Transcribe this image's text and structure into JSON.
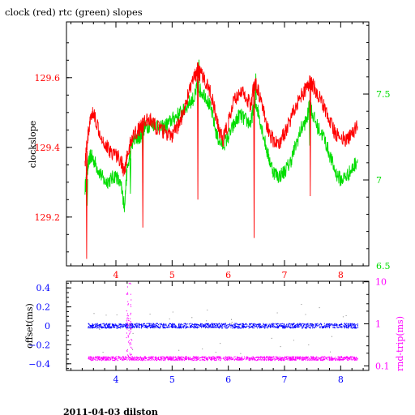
{
  "title": "clock (red) rtc (green) slopes",
  "footer": "2011-04-03 dilston",
  "chart_data": [
    {
      "type": "line",
      "ylabel": "clockslope",
      "xlim": [
        3.12,
        8.5
      ],
      "x_ticks": [
        "4",
        "5",
        "6",
        "7",
        "8"
      ],
      "ylim_left": [
        129.06,
        129.76
      ],
      "y_ticks_left": [
        "129.2",
        "129.4",
        "129.6"
      ],
      "ylim_right": [
        6.5,
        7.92
      ],
      "y_ticks_right": [
        "6.5",
        "7",
        "7.5"
      ],
      "colors": {
        "clock": "#ff0000",
        "rtc": "#00dd00",
        "axes": "#000000"
      },
      "series": [
        {
          "x": [
            3.45,
            3.5,
            3.55,
            3.6,
            3.7,
            3.8,
            3.9,
            4.0,
            4.1,
            4.15,
            4.2,
            4.3,
            4.4,
            4.45,
            4.5,
            4.6,
            4.7,
            4.8,
            4.9,
            5.0,
            5.1,
            5.2,
            5.3,
            5.4,
            5.45,
            5.5,
            5.6,
            5.7,
            5.8,
            5.9,
            6.0,
            6.1,
            6.2,
            6.3,
            6.4,
            6.45,
            6.5,
            6.6,
            6.7,
            6.8,
            6.9,
            7.0,
            7.1,
            7.2,
            7.3,
            7.4,
            7.45,
            7.5,
            7.6,
            7.7,
            7.8,
            7.9,
            8.0,
            8.1,
            8.2,
            8.3
          ],
          "values": [
            129.36,
            129.43,
            129.48,
            129.5,
            129.45,
            129.41,
            129.39,
            129.38,
            129.36,
            129.32,
            129.38,
            129.43,
            129.45,
            129.46,
            129.47,
            129.48,
            129.46,
            129.45,
            129.44,
            129.43,
            129.46,
            129.5,
            129.56,
            129.6,
            129.62,
            129.61,
            129.59,
            129.55,
            129.47,
            129.42,
            129.47,
            129.53,
            129.56,
            129.55,
            129.52,
            129.57,
            129.58,
            129.52,
            129.45,
            129.42,
            129.41,
            129.44,
            129.48,
            129.52,
            129.55,
            129.57,
            129.59,
            129.58,
            129.55,
            129.52,
            129.48,
            129.44,
            129.43,
            129.42,
            129.44,
            129.46
          ]
        },
        {
          "x": [
            3.45,
            3.5,
            3.55,
            3.6,
            3.7,
            3.8,
            3.9,
            4.0,
            4.1,
            4.15,
            4.2,
            4.3,
            4.4,
            4.45,
            4.5,
            4.6,
            4.7,
            4.8,
            4.9,
            5.0,
            5.1,
            5.2,
            5.3,
            5.4,
            5.45,
            5.5,
            5.6,
            5.7,
            5.8,
            5.9,
            6.0,
            6.1,
            6.2,
            6.3,
            6.4,
            6.45,
            6.5,
            6.6,
            6.7,
            6.8,
            6.9,
            7.0,
            7.1,
            7.2,
            7.3,
            7.4,
            7.45,
            7.5,
            7.6,
            7.7,
            7.8,
            7.9,
            8.0,
            8.1,
            8.2,
            8.3
          ],
          "values": [
            6.95,
            7.08,
            7.14,
            7.12,
            7.05,
            6.99,
            7.0,
            7.03,
            6.95,
            6.85,
            7.06,
            7.22,
            7.25,
            7.26,
            7.3,
            7.32,
            7.33,
            7.3,
            7.32,
            7.35,
            7.38,
            7.4,
            7.45,
            7.48,
            7.55,
            7.52,
            7.49,
            7.4,
            7.25,
            7.2,
            7.25,
            7.32,
            7.38,
            7.35,
            7.33,
            7.42,
            7.44,
            7.3,
            7.15,
            7.05,
            7.02,
            7.05,
            7.1,
            7.2,
            7.3,
            7.35,
            7.45,
            7.38,
            7.3,
            7.25,
            7.15,
            7.05,
            7.0,
            7.02,
            7.06,
            7.12
          ]
        }
      ]
    },
    {
      "type": "scatter",
      "ylabel_left": "offset(ms)",
      "ylabel_right": "rnd-trip(ms)",
      "xlim": [
        3.12,
        8.5
      ],
      "x_ticks": [
        "4",
        "5",
        "6",
        "7",
        "8"
      ],
      "ylim_left": [
        -0.47,
        0.47
      ],
      "y_ticks_left": [
        "0.4",
        "0.2",
        "0",
        "−0.2",
        "−0.4"
      ],
      "right_log_ticks": [
        "10",
        "1",
        "0.1"
      ],
      "colors": {
        "offset": "#0000ff",
        "roundtrip": "#ff00ff"
      },
      "series": [
        {
          "x_start": 3.5,
          "x_end": 8.3,
          "values": [
            0.0
          ],
          "jitter": 0.025
        },
        {
          "x_start": 3.5,
          "x_end": 8.3,
          "values": [
            0.15
          ],
          "spike_x": [
            4.18,
            4.28
          ],
          "spike_peak": 10
        }
      ]
    }
  ]
}
